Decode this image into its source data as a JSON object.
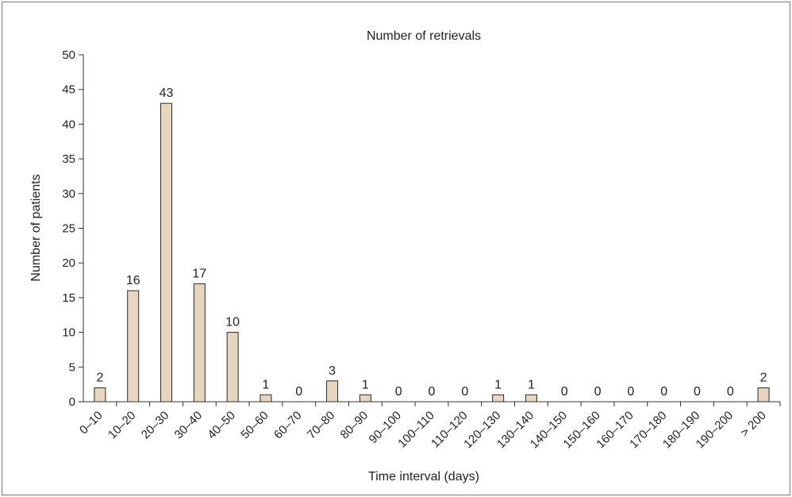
{
  "chart_data": {
    "type": "bar",
    "title": "Number of retrievals",
    "xlabel": "Time interval (days)",
    "ylabel": "Number of patients",
    "ylim": [
      0,
      50
    ],
    "yticks": [
      0,
      5,
      10,
      15,
      20,
      25,
      30,
      35,
      40,
      45,
      50
    ],
    "categories": [
      "0–10",
      "10–20",
      "20–30",
      "30–40",
      "40–50",
      "50–60",
      "60–70",
      "70–80",
      "80–90",
      "90–100",
      "100–110",
      "110–120",
      "120–130",
      "130–140",
      "140–150",
      "150–160",
      "160–170",
      "170–180",
      "180–190",
      "190–200",
      "> 200"
    ],
    "values": [
      2,
      16,
      43,
      17,
      10,
      1,
      0,
      3,
      1,
      0,
      0,
      0,
      1,
      1,
      0,
      0,
      0,
      0,
      0,
      0,
      2
    ],
    "data_labels": [
      "2",
      "16",
      "43",
      "17",
      "10",
      "1",
      "0",
      "3",
      "1",
      "0",
      "0",
      "0",
      "1",
      "1",
      "0",
      "0",
      "0",
      "0",
      "0",
      "0",
      "2"
    ],
    "bar_fill": "#e8d5bd",
    "bar_stroke": "#2a2a2a",
    "grid": false,
    "legend": "none"
  }
}
